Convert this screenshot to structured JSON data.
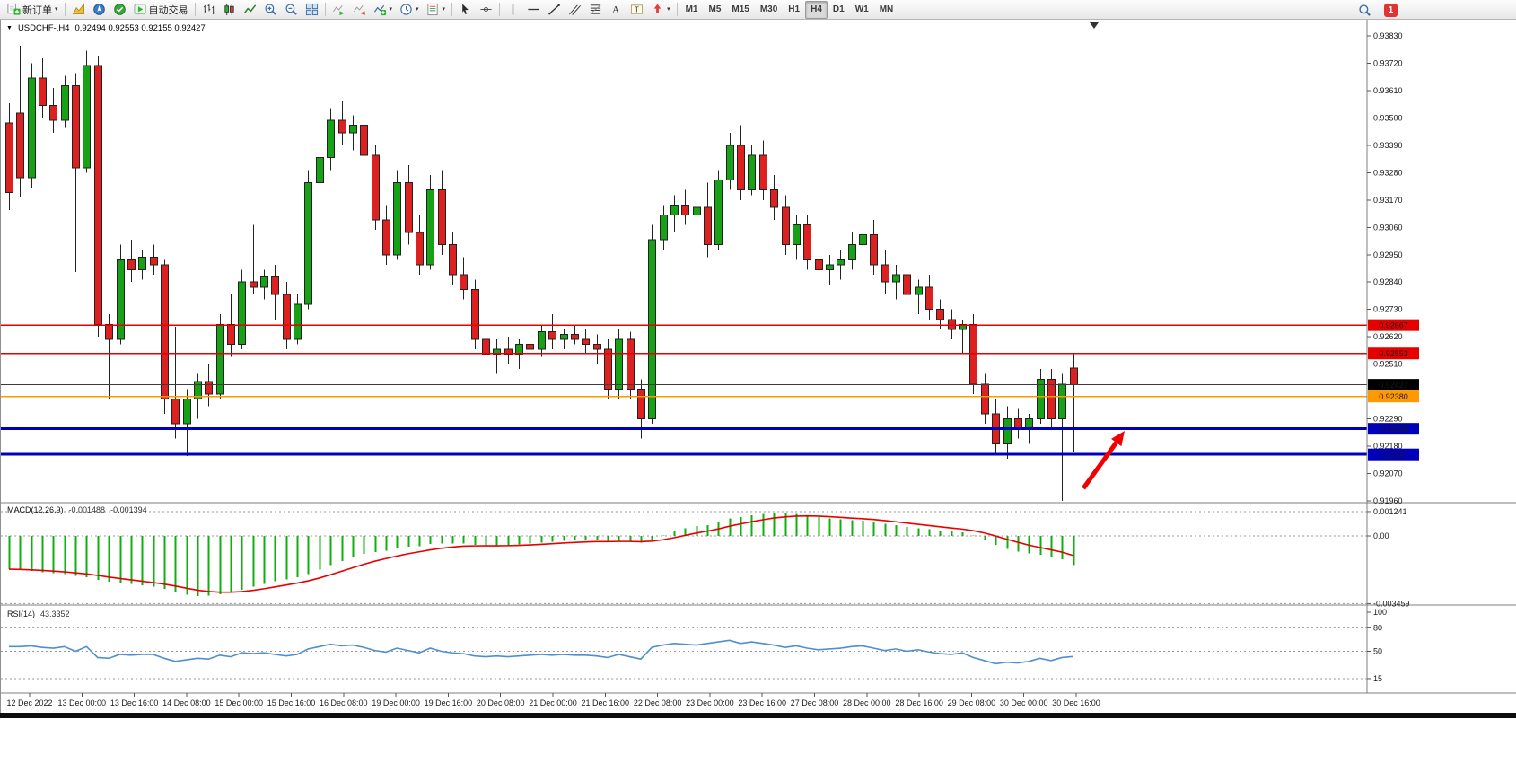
{
  "toolbar": {
    "groups": [
      [
        {
          "name": "new-order-button",
          "icon": "new-order",
          "label": "新订单",
          "caret": true
        }
      ],
      [
        {
          "name": "market-watch-button",
          "icon": "market-watch"
        },
        {
          "name": "navigator-button",
          "icon": "navigator"
        },
        {
          "name": "terminal-button",
          "icon": "terminal"
        },
        {
          "name": "auto-trading-button",
          "icon": "auto-trading",
          "label": "自动交易"
        }
      ],
      [
        {
          "name": "bar-chart-button",
          "icon": "bar-chart"
        },
        {
          "name": "candlestick-button",
          "icon": "candles"
        },
        {
          "name": "line-chart-button",
          "icon": "line-chart"
        },
        {
          "name": "zoom-in-button",
          "icon": "zoom-in"
        },
        {
          "name": "zoom-out-button",
          "icon": "zoom-out"
        },
        {
          "name": "tile-windows-button",
          "icon": "tile"
        }
      ],
      [
        {
          "name": "auto-scroll-button",
          "icon": "autoscroll"
        },
        {
          "name": "chart-shift-button",
          "icon": "shift"
        },
        {
          "name": "indicators-button",
          "icon": "indicators",
          "caret": true
        },
        {
          "name": "periods-button",
          "icon": "periods",
          "caret": true
        },
        {
          "name": "templates-button",
          "icon": "templates",
          "caret": true
        }
      ],
      [
        {
          "name": "cursor-button",
          "icon": "cursor"
        },
        {
          "name": "crosshair-button",
          "icon": "crosshair"
        }
      ],
      [
        {
          "name": "vertical-line-button",
          "icon": "vline"
        },
        {
          "name": "horizontal-line-button",
          "icon": "hline"
        },
        {
          "name": "trendline-button",
          "icon": "trendline"
        },
        {
          "name": "channel-button",
          "icon": "channel"
        },
        {
          "name": "fibonacci-button",
          "icon": "fibo"
        },
        {
          "name": "text-button",
          "icon": "text"
        },
        {
          "name": "text-label-button",
          "icon": "label"
        },
        {
          "name": "arrows-button",
          "icon": "arrows",
          "caret": true
        }
      ],
      [
        {
          "name": "tf-m1-button",
          "label": "M1",
          "tf": true
        },
        {
          "name": "tf-m5-button",
          "label": "M5",
          "tf": true
        },
        {
          "name": "tf-m15-button",
          "label": "M15",
          "tf": true
        },
        {
          "name": "tf-m30-button",
          "label": "M30",
          "tf": true
        },
        {
          "name": "tf-h1-button",
          "label": "H1",
          "tf": true
        },
        {
          "name": "tf-h4-button",
          "label": "H4",
          "tf": true,
          "active": true
        },
        {
          "name": "tf-d1-button",
          "label": "D1",
          "tf": true
        },
        {
          "name": "tf-w1-button",
          "label": "W1",
          "tf": true
        },
        {
          "name": "tf-mn-button",
          "label": "MN",
          "tf": true
        }
      ]
    ],
    "right": [
      {
        "name": "search-button",
        "icon": "search"
      },
      {
        "name": "notifications-button",
        "badge": "1"
      }
    ]
  },
  "chart": {
    "caret": "▼",
    "title": "USDCHF-,H4",
    "ohlc": "0.92494 0.92553 0.92155 0.92427"
  },
  "indicators": {
    "macd": {
      "label": "MACD(12,26,9)",
      "value1": "-0.001488",
      "value2": "-0.001394"
    },
    "rsi": {
      "label": "RSI(14)",
      "value": "43.3352"
    }
  },
  "chart_data": {
    "type": "candlestick",
    "title": "USDCHF-,H4",
    "symbol": "USDCHF",
    "timeframe": "H4",
    "price_axis": {
      "max": 0.9383,
      "min": 0.9196,
      "labels": [
        "0.93830",
        "0.93720",
        "0.93610",
        "0.93500",
        "0.93390",
        "0.93280",
        "0.93170",
        "0.93060",
        "0.92950",
        "0.92840",
        "0.92730",
        "0.92620",
        "0.92510",
        "0.92290",
        "0.92180",
        "0.92070",
        "0.91960"
      ]
    },
    "candles": [
      [
        0.9348,
        0.9356,
        0.9313,
        0.932
      ],
      [
        0.9352,
        0.9379,
        0.9318,
        0.9326
      ],
      [
        0.9326,
        0.9372,
        0.9322,
        0.9366
      ],
      [
        0.9366,
        0.9374,
        0.935,
        0.9355
      ],
      [
        0.9355,
        0.9362,
        0.9344,
        0.9349
      ],
      [
        0.9349,
        0.9367,
        0.9346,
        0.9363
      ],
      [
        0.9363,
        0.9368,
        0.9288,
        0.933
      ],
      [
        0.933,
        0.9377,
        0.9328,
        0.9371
      ],
      [
        0.9371,
        0.9375,
        0.9262,
        0.9267
      ],
      [
        0.9267,
        0.9271,
        0.9237,
        0.9261
      ],
      [
        0.9261,
        0.9299,
        0.9259,
        0.9293
      ],
      [
        0.9293,
        0.9301,
        0.9284,
        0.9289
      ],
      [
        0.9289,
        0.9297,
        0.9285,
        0.9294
      ],
      [
        0.9294,
        0.9299,
        0.9287,
        0.9291
      ],
      [
        0.9291,
        0.9293,
        0.9231,
        0.9237
      ],
      [
        0.9237,
        0.9266,
        0.9221,
        0.9227
      ],
      [
        0.9227,
        0.9241,
        0.9214,
        0.9237
      ],
      [
        0.9237,
        0.9247,
        0.9229,
        0.9244
      ],
      [
        0.9244,
        0.9251,
        0.9234,
        0.9239
      ],
      [
        0.9239,
        0.9271,
        0.9237,
        0.9267
      ],
      [
        0.9267,
        0.9279,
        0.9254,
        0.9259
      ],
      [
        0.9259,
        0.9289,
        0.9257,
        0.9284
      ],
      [
        0.9284,
        0.9307,
        0.9279,
        0.9282
      ],
      [
        0.9282,
        0.9289,
        0.9277,
        0.9286
      ],
      [
        0.9286,
        0.9291,
        0.9269,
        0.9279
      ],
      [
        0.9279,
        0.9284,
        0.9257,
        0.9261
      ],
      [
        0.9261,
        0.9279,
        0.9259,
        0.9275
      ],
      [
        0.9275,
        0.9329,
        0.9273,
        0.9324
      ],
      [
        0.9324,
        0.9339,
        0.9317,
        0.9334
      ],
      [
        0.9334,
        0.9354,
        0.9329,
        0.9349
      ],
      [
        0.9349,
        0.9357,
        0.9339,
        0.9344
      ],
      [
        0.9344,
        0.9351,
        0.9337,
        0.9347
      ],
      [
        0.9347,
        0.9355,
        0.9331,
        0.9335
      ],
      [
        0.9335,
        0.9339,
        0.9305,
        0.9309
      ],
      [
        0.9309,
        0.9315,
        0.9291,
        0.9295
      ],
      [
        0.9295,
        0.9329,
        0.9293,
        0.9324
      ],
      [
        0.9324,
        0.9331,
        0.9299,
        0.9304
      ],
      [
        0.9304,
        0.9311,
        0.9287,
        0.9291
      ],
      [
        0.9291,
        0.9327,
        0.9289,
        0.9321
      ],
      [
        0.9321,
        0.9329,
        0.9295,
        0.9299
      ],
      [
        0.9299,
        0.9304,
        0.9283,
        0.9287
      ],
      [
        0.9287,
        0.9294,
        0.9277,
        0.9281
      ],
      [
        0.9281,
        0.9285,
        0.9257,
        0.9261
      ],
      [
        0.9261,
        0.9267,
        0.9249,
        0.9255
      ],
      [
        0.9255,
        0.9261,
        0.9247,
        0.9257
      ],
      [
        0.9257,
        0.9262,
        0.9251,
        0.9255
      ],
      [
        0.9255,
        0.9261,
        0.9249,
        0.9259
      ],
      [
        0.9259,
        0.9263,
        0.9253,
        0.9257
      ],
      [
        0.9257,
        0.9267,
        0.9254,
        0.9264
      ],
      [
        0.9264,
        0.9271,
        0.9257,
        0.9261
      ],
      [
        0.9261,
        0.9265,
        0.9257,
        0.9263
      ],
      [
        0.9263,
        0.9267,
        0.9259,
        0.9261
      ],
      [
        0.9261,
        0.9265,
        0.9255,
        0.9259
      ],
      [
        0.9259,
        0.9263,
        0.9251,
        0.9257
      ],
      [
        0.9257,
        0.9261,
        0.9237,
        0.9241
      ],
      [
        0.9241,
        0.9265,
        0.9237,
        0.9261
      ],
      [
        0.9261,
        0.9264,
        0.9237,
        0.9241
      ],
      [
        0.9241,
        0.9245,
        0.9221,
        0.9229
      ],
      [
        0.9229,
        0.9307,
        0.9227,
        0.9301
      ],
      [
        0.9301,
        0.9315,
        0.9297,
        0.9311
      ],
      [
        0.9311,
        0.9319,
        0.9304,
        0.9315
      ],
      [
        0.9315,
        0.9321,
        0.9307,
        0.9311
      ],
      [
        0.9311,
        0.9317,
        0.9303,
        0.9314
      ],
      [
        0.9314,
        0.9324,
        0.9294,
        0.9299
      ],
      [
        0.9299,
        0.9329,
        0.9297,
        0.9325
      ],
      [
        0.9325,
        0.9344,
        0.9321,
        0.9339
      ],
      [
        0.9339,
        0.9347,
        0.9317,
        0.9321
      ],
      [
        0.9321,
        0.9339,
        0.9319,
        0.9335
      ],
      [
        0.9335,
        0.9341,
        0.9317,
        0.9321
      ],
      [
        0.9321,
        0.9327,
        0.9309,
        0.9314
      ],
      [
        0.9314,
        0.9319,
        0.9295,
        0.9299
      ],
      [
        0.9299,
        0.9311,
        0.9293,
        0.9307
      ],
      [
        0.9307,
        0.9311,
        0.9289,
        0.9293
      ],
      [
        0.9293,
        0.9299,
        0.9285,
        0.9289
      ],
      [
        0.9289,
        0.9295,
        0.9283,
        0.9291
      ],
      [
        0.9291,
        0.9297,
        0.9285,
        0.9293
      ],
      [
        0.9293,
        0.9304,
        0.9289,
        0.9299
      ],
      [
        0.9299,
        0.9307,
        0.9293,
        0.9303
      ],
      [
        0.9303,
        0.9309,
        0.9287,
        0.9291
      ],
      [
        0.9291,
        0.9297,
        0.9279,
        0.9284
      ],
      [
        0.9284,
        0.9291,
        0.9277,
        0.9287
      ],
      [
        0.9287,
        0.9291,
        0.9275,
        0.9279
      ],
      [
        0.9279,
        0.9285,
        0.9271,
        0.9282
      ],
      [
        0.9282,
        0.9287,
        0.9269,
        0.9273
      ],
      [
        0.9273,
        0.9277,
        0.9265,
        0.9269
      ],
      [
        0.9269,
        0.9273,
        0.9261,
        0.9265
      ],
      [
        0.9265,
        0.9269,
        0.9255,
        0.9267
      ],
      [
        0.9267,
        0.9271,
        0.9239,
        0.9243
      ],
      [
        0.9243,
        0.9247,
        0.9227,
        0.9231
      ],
      [
        0.9231,
        0.9237,
        0.9215,
        0.9219
      ],
      [
        0.9219,
        0.9234,
        0.9213,
        0.9229
      ],
      [
        0.9229,
        0.9233,
        0.9221,
        0.9225
      ],
      [
        0.9225,
        0.9231,
        0.9219,
        0.9229
      ],
      [
        0.9229,
        0.9249,
        0.9227,
        0.9245
      ],
      [
        0.9245,
        0.9249,
        0.9225,
        0.9229
      ],
      [
        0.9229,
        0.9247,
        0.9196,
        0.9243
      ],
      [
        0.92494,
        0.92553,
        0.92155,
        0.92427
      ]
    ],
    "hlines": [
      {
        "price": 0.92667,
        "color": "#e60000",
        "width": 1.3
      },
      {
        "price": 0.92553,
        "color": "#e60000",
        "width": 1.3
      },
      {
        "price": 0.92427,
        "color": "#3c3c3c",
        "width": 1
      },
      {
        "price": 0.9238,
        "color": "#ff9900",
        "width": 1.3
      },
      {
        "price": 0.9225,
        "color": "#0000bb",
        "width": 3
      },
      {
        "price": 0.92147,
        "color": "#0000bb",
        "width": 3
      }
    ],
    "price_tags": [
      {
        "value": "0.92667",
        "color": "#e60000"
      },
      {
        "value": "0.92553",
        "color": "#e60000"
      },
      {
        "value": "0.92427",
        "color": "#000000"
      },
      {
        "value": "0.92380",
        "color": "#ff9900"
      },
      {
        "value": "0.92250",
        "color": "#0000bb"
      },
      {
        "value": "0.92147",
        "color": "#0000bb"
      }
    ],
    "dates": [
      "12 Dec 2022",
      "13 Dec 00:00",
      "13 Dec 16:00",
      "14 Dec 08:00",
      "15 Dec 00:00",
      "15 Dec 16:00",
      "16 Dec 08:00",
      "19 Dec 00:00",
      "19 Dec 16:00",
      "20 Dec 08:00",
      "21 Dec 00:00",
      "21 Dec 16:00",
      "22 Dec 08:00",
      "23 Dec 00:00",
      "23 Dec 16:00",
      "27 Dec 08:00",
      "28 Dec 00:00",
      "28 Dec 16:00",
      "29 Dec 08:00",
      "30 Dec 00:00",
      "30 Dec 16:00"
    ],
    "macd": {
      "values": [
        -0.0017,
        -0.00175,
        -0.0018,
        -0.00185,
        -0.0019,
        -0.00195,
        -0.00205,
        -0.0021,
        -0.00225,
        -0.00235,
        -0.0024,
        -0.00245,
        -0.00252,
        -0.0026,
        -0.0027,
        -0.00285,
        -0.003,
        -0.00308,
        -0.00305,
        -0.00298,
        -0.00288,
        -0.00275,
        -0.0026,
        -0.00245,
        -0.00232,
        -0.00222,
        -0.00212,
        -0.00195,
        -0.00172,
        -0.00148,
        -0.00128,
        -0.00108,
        -0.00092,
        -0.00082,
        -0.00076,
        -0.00064,
        -0.00056,
        -0.00052,
        -0.00042,
        -0.00038,
        -0.00038,
        -0.0004,
        -0.00046,
        -0.0005,
        -0.0005,
        -0.00048,
        -0.00044,
        -0.0004,
        -0.00034,
        -0.0003,
        -0.00026,
        -0.00024,
        -0.00023,
        -0.00024,
        -0.00028,
        -0.00026,
        -0.00028,
        -0.00034,
        -0.00018,
        2e-05,
        0.00022,
        0.00038,
        0.0005,
        0.00055,
        0.0007,
        0.0009,
        0.00097,
        0.00106,
        0.00113,
        0.00118,
        0.00115,
        0.00112,
        0.00106,
        0.00098,
        0.0009,
        0.00084,
        0.0008,
        0.00078,
        0.00072,
        0.00062,
        0.00054,
        0.00046,
        0.0004,
        0.00034,
        0.00028,
        0.00022,
        0.00018,
        2e-05,
        -0.0002,
        -0.00046,
        -0.00066,
        -0.0008,
        -0.0009,
        -0.00096,
        -0.00106,
        -0.0012,
        -0.00149
      ],
      "axis_labels": [
        "0.001241",
        "0.00",
        "-0.003459"
      ],
      "axis_levels": [
        0.001241,
        0,
        -0.003459
      ]
    },
    "rsi": {
      "values": [
        56,
        56,
        57,
        55,
        54,
        56,
        50,
        56,
        42,
        41,
        46,
        45,
        46,
        46,
        41,
        37,
        39,
        41,
        40,
        45,
        43,
        48,
        47,
        48,
        46,
        44,
        46,
        53,
        56,
        59,
        57,
        58,
        55,
        51,
        49,
        54,
        51,
        48,
        54,
        50,
        48,
        47,
        44,
        43,
        44,
        43,
        44,
        45,
        46,
        45,
        46,
        45,
        45,
        44,
        42,
        46,
        43,
        40,
        55,
        58,
        60,
        59,
        58,
        60,
        62,
        64,
        60,
        62,
        60,
        58,
        55,
        57,
        54,
        52,
        53,
        54,
        56,
        57,
        54,
        51,
        53,
        50,
        52,
        49,
        47,
        46,
        48,
        42,
        38,
        34,
        36,
        35,
        37,
        41,
        38,
        42,
        43.34
      ],
      "axis_labels": [
        "100",
        "80",
        "50",
        "15"
      ],
      "axis_level_values": [
        100,
        80,
        50,
        15
      ],
      "levels": [
        80,
        50,
        15
      ]
    },
    "colors": {
      "bull": "#17a117",
      "bear": "#dd2020",
      "wick": "#222222",
      "macd_hist": "#0faf0f",
      "macd_signal": "#e80000",
      "rsi_line": "#4f8fce"
    },
    "annotations": [
      {
        "type": "arrow",
        "color": "#f20000",
        "tail": [
          1206,
          522
        ],
        "tip": [
          1252,
          458
        ]
      }
    ]
  }
}
